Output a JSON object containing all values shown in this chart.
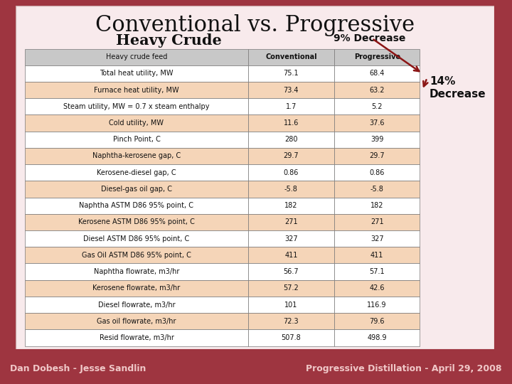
{
  "title_line1": "Conventional vs. Progressive",
  "title_line2": "Heavy Crude",
  "annotation1": "9% Decrease",
  "annotation2": "14%\nDecrease",
  "bg_outer": "#9e3540",
  "bg_inner_top": "#ffffff",
  "bg_inner_bot": "#f0d8dc",
  "table_header_bg": "#c8c8c8",
  "table_odd_bg": "#f5d5b8",
  "table_even_bg": "#ffffff",
  "col_headers": [
    "Heavy crude feed",
    "Conventional",
    "Progressive"
  ],
  "rows": [
    [
      "Total heat utility, MW",
      "75.1",
      "68.4"
    ],
    [
      "Furnace heat utility, MW",
      "73.4",
      "63.2"
    ],
    [
      "Steam utility, MW = 0.7 x steam enthalpy",
      "1.7",
      "5.2"
    ],
    [
      "Cold utility, MW",
      "11.6",
      "37.6"
    ],
    [
      "Pinch Point, C",
      "280",
      "399"
    ],
    [
      "Naphtha-kerosene gap, C",
      "29.7",
      "29.7"
    ],
    [
      "Kerosene-diesel gap, C",
      "0.86",
      "0.86"
    ],
    [
      "Diesel-gas oil gap, C",
      "-5.8",
      "-5.8"
    ],
    [
      "Naphtha ASTM D86 95% point, C",
      "182",
      "182"
    ],
    [
      "Kerosene ASTM D86 95% point, C",
      "271",
      "271"
    ],
    [
      "Diesel ASTM D86 95% point, C",
      "327",
      "327"
    ],
    [
      "Gas Oil ASTM D86 95% point, C",
      "411",
      "411"
    ],
    [
      "Naphtha flowrate, m3/hr",
      "56.7",
      "57.1"
    ],
    [
      "Kerosene flowrate, m3/hr",
      "57.2",
      "42.6"
    ],
    [
      "Diesel flowrate, m3/hr",
      "101",
      "116.9"
    ],
    [
      "Gas oil flowrate, m3/hr",
      "72.3",
      "79.6"
    ],
    [
      "Resid flowrate, m3/hr",
      "507.8",
      "498.9"
    ]
  ],
  "footer_left": "Dan Dobesh - Jesse Sandlin",
  "footer_right": "Progressive Distillation - April 29, 2008",
  "footer_text_color": "#f0c8c8"
}
